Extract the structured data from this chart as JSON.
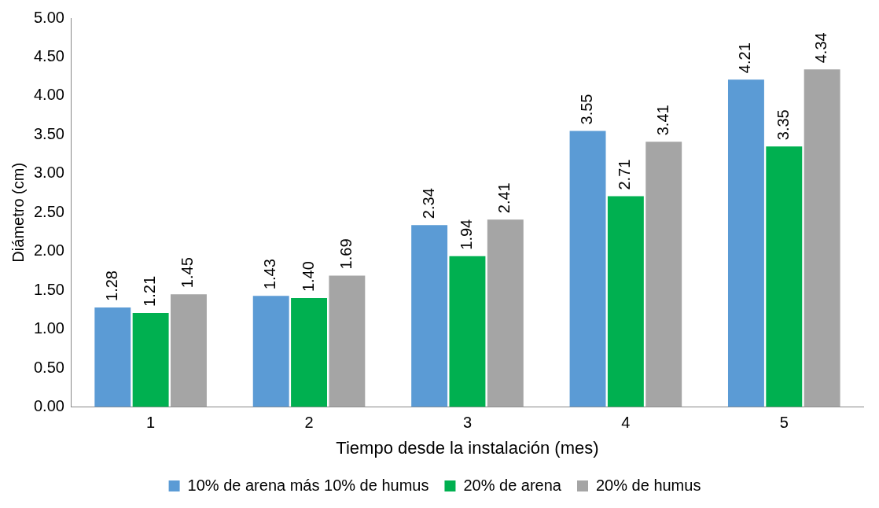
{
  "chart_data": {
    "type": "bar",
    "xlabel": "Tiempo desde la instalación (mes)",
    "ylabel": "Diámetro (cm)",
    "categories": [
      "1",
      "2",
      "3",
      "4",
      "5"
    ],
    "series": [
      {
        "name": "10% de arena más 10% de humus",
        "color": "#5b9bd5",
        "values": [
          1.28,
          1.43,
          2.34,
          3.55,
          4.21
        ],
        "value_labels": [
          "1.28",
          "1.43",
          "2.34",
          "3.55",
          "4.21"
        ]
      },
      {
        "name": "20% de arena",
        "color": "#00b050",
        "values": [
          1.21,
          1.4,
          1.94,
          2.71,
          3.35
        ],
        "value_labels": [
          "1.21",
          "1.40",
          "1.94",
          "2.71",
          "3.35"
        ]
      },
      {
        "name": "20% de humus",
        "color": "#a5a5a5",
        "values": [
          1.45,
          1.69,
          2.41,
          3.41,
          4.34
        ],
        "value_labels": [
          "1.45",
          "1.69",
          "2.41",
          "3.41",
          "4.34"
        ]
      }
    ],
    "ylim": [
      0,
      5
    ],
    "yticks": [
      "0.00",
      "0.50",
      "1.00",
      "1.50",
      "2.00",
      "2.50",
      "3.00",
      "3.50",
      "4.00",
      "4.50",
      "5.00"
    ],
    "grid": false,
    "legend": "bottom"
  }
}
